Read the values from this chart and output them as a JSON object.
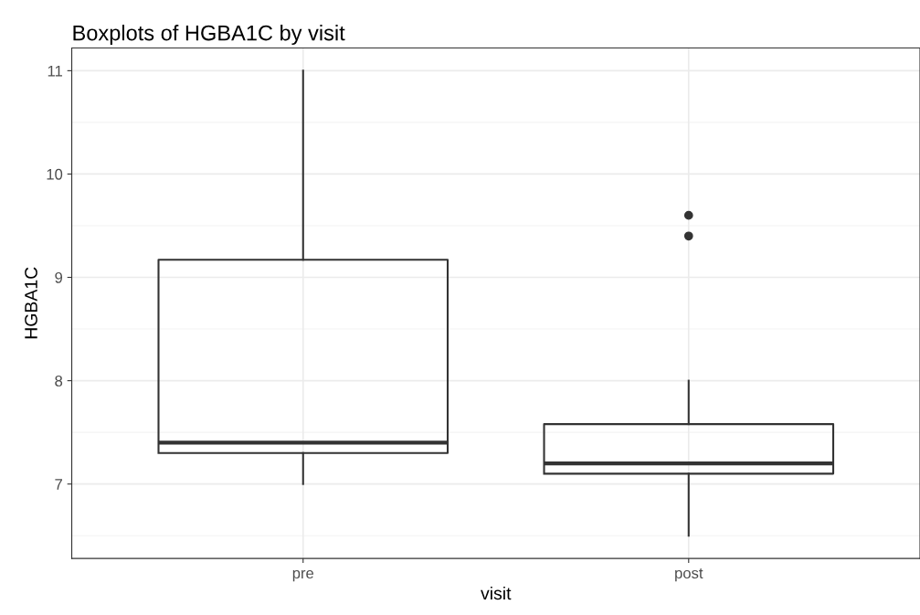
{
  "chart_data": {
    "type": "box",
    "title": "Boxplots of HGBA1C by visit",
    "xlabel": "visit",
    "ylabel": "HGBA1C",
    "categories": [
      "pre",
      "post"
    ],
    "boxes": [
      {
        "low": 7.0,
        "q1": 7.3,
        "median": 7.4,
        "q3": 9.17,
        "high": 11.0
      },
      {
        "low": 6.5,
        "q1": 7.1,
        "median": 7.2,
        "q3": 7.58,
        "high": 8.0,
        "outliers": [
          9.4,
          9.6
        ]
      }
    ],
    "ylim": [
      6.28,
      11.22
    ],
    "yticks": [
      7,
      8,
      9,
      10,
      11
    ],
    "grid": true
  }
}
